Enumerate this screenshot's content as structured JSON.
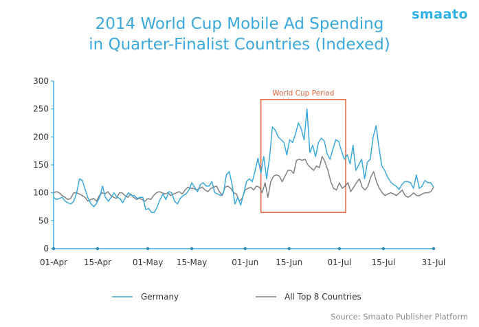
{
  "logo": "smaato",
  "source": "Source:  Smaato Publisher Platform",
  "chart_data": {
    "type": "line",
    "title": [
      "2014 World Cup Mobile Ad Spending",
      "in Quarter-Finalist Countries (Indexed)"
    ],
    "x_tick_labels": [
      "01-Apr",
      "15-Apr",
      "01-May",
      "15-May",
      "01-Jun",
      "15-Jun",
      "01-Jul",
      "15-Jul",
      "31-Jul"
    ],
    "x_tick_days": [
      0,
      14,
      30,
      44,
      61,
      75,
      91,
      105,
      121
    ],
    "ylim": [
      0,
      300
    ],
    "yticks": [
      0,
      50,
      100,
      150,
      200,
      250,
      300
    ],
    "grid": false,
    "legend_position": "bottom",
    "annotation": {
      "label": "World Cup Period",
      "x_start_day": 66,
      "x_end_day": 93,
      "y_low": 65,
      "y_high": 267,
      "color": "#e8613a"
    },
    "series": [
      {
        "name": "Germany",
        "color": "#3aa8dc",
        "values": [
          92,
          88,
          90,
          92,
          85,
          82,
          80,
          85,
          100,
          125,
          122,
          105,
          90,
          80,
          75,
          82,
          92,
          112,
          92,
          85,
          92,
          100,
          92,
          90,
          82,
          92,
          100,
          95,
          95,
          90,
          92,
          92,
          70,
          72,
          65,
          65,
          75,
          88,
          98,
          88,
          102,
          100,
          85,
          80,
          90,
          95,
          98,
          105,
          118,
          110,
          102,
          115,
          118,
          112,
          112,
          120,
          100,
          98,
          95,
          100,
          132,
          138,
          115,
          80,
          92,
          78,
          98,
          120,
          125,
          120,
          140,
          162,
          135,
          165,
          125,
          162,
          218,
          212,
          200,
          195,
          190,
          168,
          195,
          190,
          205,
          225,
          215,
          195,
          250,
          172,
          185,
          165,
          190,
          198,
          193,
          170,
          160,
          178,
          195,
          192,
          175,
          160,
          168,
          152,
          185,
          140,
          150,
          160,
          125,
          155,
          160,
          200,
          220,
          182,
          148,
          140,
          128,
          120,
          115,
          112,
          106,
          115,
          120,
          120,
          118,
          108,
          132,
          108,
          112,
          122,
          118,
          118,
          110
        ]
      },
      {
        "name": "All Top 8 Countries",
        "color": "#808080",
        "values": [
          100,
          102,
          100,
          95,
          92,
          88,
          90,
          100,
          100,
          98,
          95,
          92,
          85,
          88,
          90,
          85,
          95,
          100,
          98,
          102,
          95,
          92,
          90,
          100,
          100,
          95,
          92,
          98,
          92,
          88,
          90,
          88,
          85,
          90,
          88,
          95,
          100,
          102,
          100,
          98,
          100,
          95,
          98,
          100,
          102,
          98,
          105,
          110,
          108,
          108,
          105,
          108,
          110,
          105,
          102,
          108,
          110,
          112,
          102,
          95,
          110,
          112,
          108,
          100,
          98,
          85,
          90,
          105,
          108,
          110,
          105,
          112,
          110,
          100,
          118,
          92,
          120,
          130,
          132,
          130,
          120,
          130,
          140,
          140,
          135,
          158,
          160,
          158,
          160,
          150,
          145,
          140,
          148,
          145,
          165,
          155,
          140,
          120,
          108,
          105,
          118,
          108,
          112,
          118,
          102,
          110,
          118,
          125,
          110,
          105,
          112,
          128,
          138,
          120,
          108,
          100,
          95,
          98,
          100,
          98,
          95,
          100,
          105,
          95,
          92,
          95,
          100,
          95,
          95,
          98,
          100,
          100,
          102,
          110
        ]
      }
    ]
  }
}
